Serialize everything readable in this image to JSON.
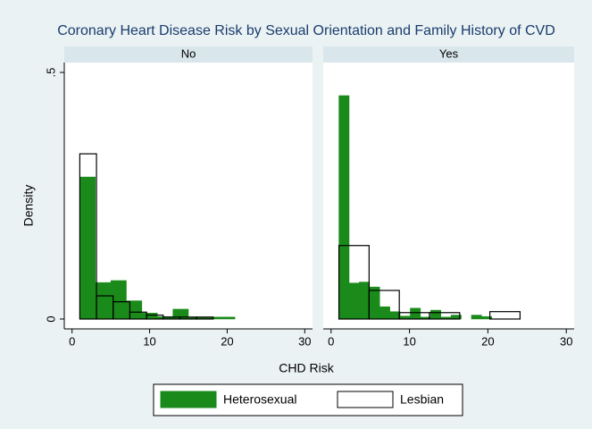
{
  "chart_data": {
    "type": "histogram",
    "title": "Coronary Heart Disease Risk by Sexual Orientation and Family History of CVD",
    "xlabel": "CHD Risk",
    "ylabel": "Density",
    "xlim": [
      -1,
      31
    ],
    "xticks": [
      0,
      10,
      20,
      30
    ],
    "ylim": [
      -0.02,
      0.52
    ],
    "yticks": [
      0,
      {
        "value": 0.5,
        "label": ".5"
      }
    ],
    "series": [
      {
        "name": "Heterosexual",
        "color": "#1a8a1a"
      },
      {
        "name": "Lesbian",
        "color": "none"
      }
    ],
    "panels": [
      {
        "title": "No",
        "hist": [
          {
            "bins": [
              1,
              3,
              5,
              7,
              9,
              11,
              13,
              15,
              17,
              19,
              21
            ],
            "values": [
              0.288,
              0.074,
              0.078,
              0.037,
              0.012,
              0.005,
              0.02,
              0.004,
              0.004,
              0.004
            ]
          },
          {
            "bins": [
              1,
              3.15,
              5.3,
              7.45,
              9.6,
              11.75,
              13.9,
              16.05,
              18.2
            ],
            "values": [
              0.335,
              0.047,
              0.035,
              0.014,
              0.008,
              0.004,
              0.004,
              0.004
            ]
          }
        ]
      },
      {
        "title": "Yes",
        "hist": [
          {
            "bins": [
              1,
              2.3,
              3.6,
              4.9,
              6.2,
              7.5,
              8.8,
              10.1,
              11.4,
              12.7,
              14,
              15.3,
              16.6,
              17.9,
              19.2,
              20.5
            ],
            "values": [
              0.453,
              0.073,
              0.075,
              0.065,
              0.025,
              0.015,
              0.006,
              0.022,
              0.004,
              0.018,
              0.004,
              0.008,
              0,
              0.008,
              0.005
            ]
          },
          {
            "bins": [
              1,
              4.85,
              8.7,
              12.55,
              16.4,
              20.25,
              24.1
            ],
            "values": [
              0.149,
              0.058,
              0.013,
              0.013,
              0,
              0.015
            ]
          }
        ]
      }
    ]
  }
}
